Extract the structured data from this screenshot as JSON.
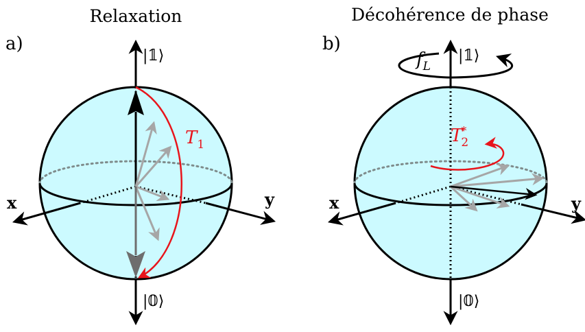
{
  "colors": {
    "sphere_fill": "#ccfaff",
    "outline": "#000000",
    "grey_vector": "#a6a6a6",
    "dark_vector": "#6e6e6e",
    "red": "#e8141b",
    "equator_dotted": "#7f8c8c"
  },
  "panel_a": {
    "title": "Relaxation",
    "label": "a)",
    "top_ket": "|𝟙⟩",
    "bottom_ket": "|𝟘⟩",
    "x_axis": "x",
    "y_axis": "y",
    "rate_symbol": "T",
    "rate_subscript": "1"
  },
  "panel_b": {
    "title": "Décohérence de phase",
    "label": "b)",
    "top_ket": "|𝟙⟩",
    "bottom_ket": "|𝟘⟩",
    "x_axis": "x",
    "y_axis": "y",
    "precession_symbol": "f",
    "precession_subscript": "L",
    "rate_symbol": "T",
    "rate_subscript": "2",
    "rate_superscript": "*"
  }
}
